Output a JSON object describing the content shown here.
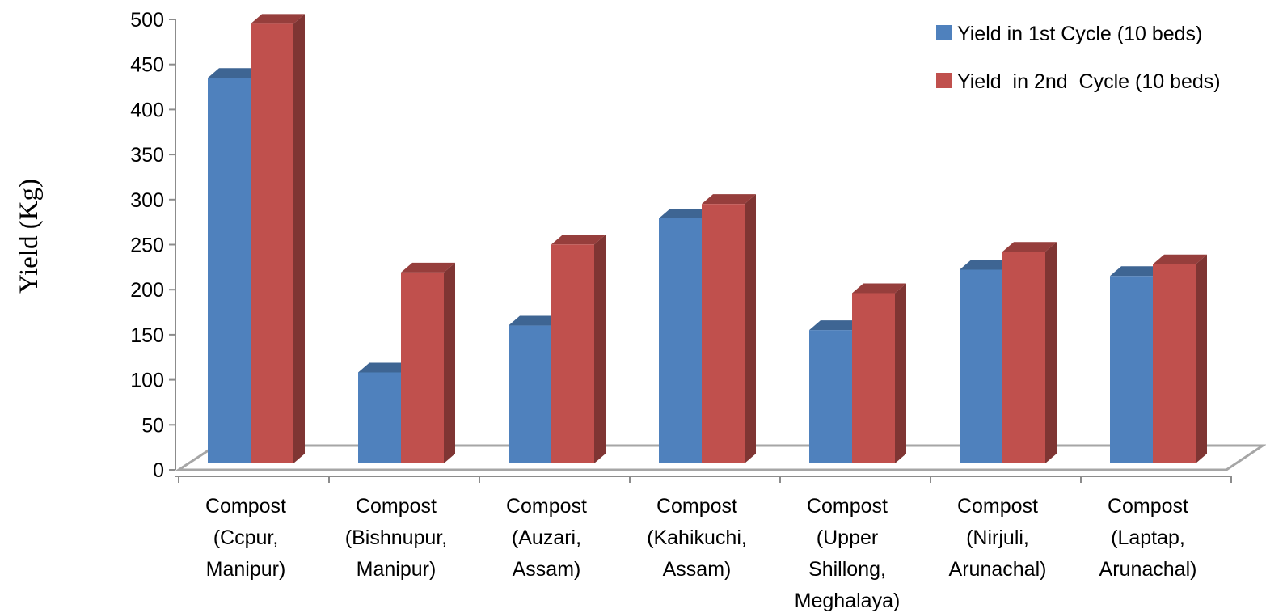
{
  "chart_data": {
    "type": "bar",
    "style": "3d-clustered-column",
    "categories": [
      [
        "Compost",
        "(Ccpur,",
        "Manipur)"
      ],
      [
        "Compost",
        "(Bishnupur,",
        "Manipur)"
      ],
      [
        "Compost",
        "(Auzari,",
        "Assam)"
      ],
      [
        "Compost",
        "(Kahikuchi,",
        "Assam)"
      ],
      [
        "Compost",
        "(Upper",
        "Shillong,",
        "Meghalaya)"
      ],
      [
        "Compost",
        "(Nirjuli,",
        "Arunachal)"
      ],
      [
        "Compost",
        "(Laptap,",
        "Arunachal)"
      ]
    ],
    "series": [
      {
        "name": "Yield in 1st Cycle (10 beds)",
        "color": "#4F81BD",
        "values": [
          428,
          101,
          153,
          272,
          148,
          215,
          208
        ]
      },
      {
        "name": "Yield  in 2nd  Cycle (10 beds)",
        "color": "#C0504D",
        "values": [
          488,
          212,
          243,
          288,
          189,
          235,
          221
        ]
      }
    ],
    "xlabel": "",
    "ylabel": "Yield  (Kg)",
    "ylim": [
      0,
      500
    ],
    "yticks": [
      0,
      50,
      100,
      150,
      200,
      250,
      300,
      350,
      400,
      450,
      500
    ],
    "grid": false,
    "legend": "top-right"
  }
}
